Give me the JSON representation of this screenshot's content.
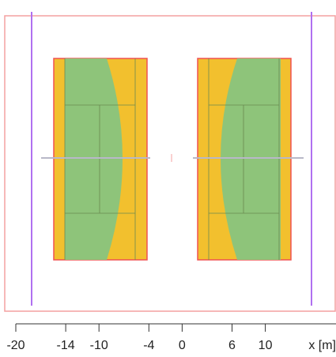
{
  "chart_data": {
    "type": "plan",
    "x_label": "x [m]",
    "xlim": [
      -20,
      18.5
    ],
    "xticks": [
      -20,
      -14,
      -10,
      -4,
      0,
      6,
      10
    ]
  }
}
